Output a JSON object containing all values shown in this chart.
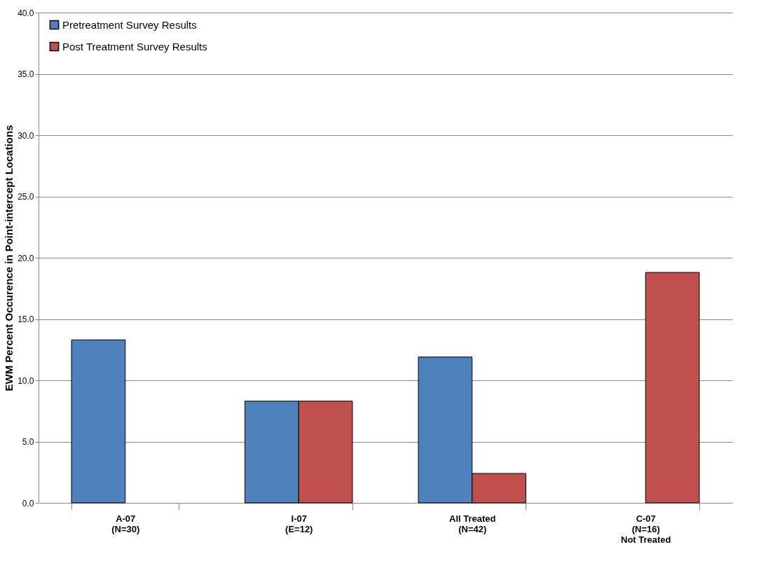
{
  "chart_data": {
    "type": "bar",
    "ylabel": "EWM Percent Occurence in Point-intercept Locations",
    "categories": [
      "A-07\n(N=30)",
      "I-07\n(E=12)",
      "All Treated\n(N=42)",
      "C-07\n(N=16)\nNot Treated"
    ],
    "series": [
      {
        "name": "Pretreatment Survey Results",
        "color": "#4f81bd",
        "values": [
          13.3,
          8.3,
          11.9,
          null
        ]
      },
      {
        "name": "Post Treatment Survey Results",
        "color": "#c0504d",
        "values": [
          null,
          8.3,
          2.4,
          18.8
        ]
      }
    ],
    "ylim": [
      0,
      40
    ],
    "yticks": [
      {
        "value": 0,
        "label": "0.0"
      },
      {
        "value": 5,
        "label": "5.0"
      },
      {
        "value": 10,
        "label": "10.0"
      },
      {
        "value": 15,
        "label": "15.0"
      },
      {
        "value": 20,
        "label": "20.0"
      },
      {
        "value": 25,
        "label": "25.0"
      },
      {
        "value": 30,
        "label": "30.0"
      },
      {
        "value": 35,
        "label": "35.0"
      },
      {
        "value": 40,
        "label": "40.0"
      }
    ],
    "grid": "y",
    "legend": "top left"
  }
}
